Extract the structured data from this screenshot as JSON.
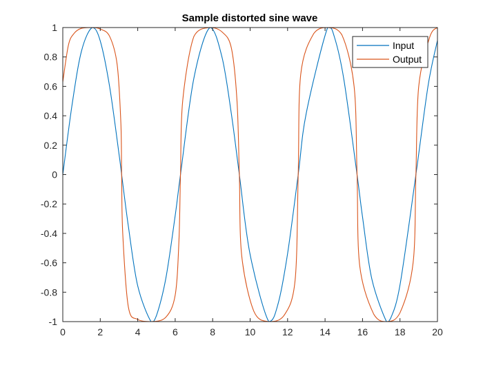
{
  "chart_data": {
    "type": "line",
    "title": "Sample distorted sine wave",
    "xlabel": "",
    "ylabel": "",
    "xlim": [
      0,
      20
    ],
    "ylim": [
      -1,
      1
    ],
    "x_ticks": [
      0,
      2,
      4,
      6,
      8,
      10,
      12,
      14,
      16,
      18,
      20
    ],
    "y_ticks": [
      -1,
      -0.8,
      -0.6,
      -0.4,
      -0.2,
      0,
      0.2,
      0.4,
      0.6,
      0.8,
      1
    ],
    "x_tick_labels": [
      "0",
      "2",
      "4",
      "6",
      "8",
      "10",
      "12",
      "14",
      "16",
      "18",
      "20"
    ],
    "y_tick_labels": [
      "-1",
      "-0.8",
      "-0.6",
      "-0.4",
      "-0.2",
      "0",
      "0.2",
      "0.4",
      "0.6",
      "0.8",
      "1"
    ],
    "grid": false,
    "legend_position": "top-right",
    "series": [
      {
        "name": "Input",
        "color": "#0072BD",
        "x": [
          0,
          0.5,
          1,
          1.5708,
          2,
          2.5,
          3,
          3.1416,
          3.5,
          4,
          4.7124,
          5,
          5.5,
          6,
          6.2832,
          7,
          7.854,
          8.5,
          9,
          9.4248,
          10,
          10.9956,
          11.5,
          12,
          12.5664,
          13,
          14.1372,
          14.5,
          15,
          15.708,
          16,
          16.5,
          17.2788,
          17.5,
          18,
          18.8496,
          19.5,
          20
        ],
        "y": [
          0,
          0.479,
          0.841,
          1,
          0.909,
          0.598,
          0.141,
          0,
          -0.351,
          -0.757,
          -1,
          -0.959,
          -0.706,
          -0.279,
          0,
          0.657,
          1,
          0.798,
          0.412,
          0,
          -0.544,
          -1,
          -0.875,
          -0.537,
          0,
          0.42,
          1,
          0.935,
          0.65,
          0,
          -0.288,
          -0.712,
          -1,
          -0.978,
          -0.751,
          0,
          0.605,
          0.913
        ]
      },
      {
        "name": "Output",
        "color": "#D95319",
        "x": [
          0,
          0.3,
          0.6,
          1,
          1.5708,
          2,
          2.5,
          2.9,
          3.1,
          3.1416,
          3.2,
          3.5,
          4,
          4.7124,
          5.5,
          6,
          6.2,
          6.2832,
          6.4,
          7,
          7.854,
          8.5,
          9,
          9.3,
          9.4248,
          9.55,
          10.2,
          10.9956,
          11.8,
          12.4,
          12.5664,
          12.7,
          13.4,
          14.1372,
          14.9,
          15.55,
          15.708,
          15.85,
          16.6,
          17.2788,
          18,
          18.7,
          18.8496,
          19,
          19.6,
          20
        ],
        "y": [
          0.63,
          0.88,
          0.96,
          0.995,
          1,
          0.99,
          0.94,
          0.75,
          0.35,
          0,
          -0.4,
          -0.9,
          -0.985,
          -1,
          -0.97,
          -0.82,
          -0.45,
          0,
          0.5,
          0.94,
          1,
          0.97,
          0.86,
          0.5,
          0,
          -0.55,
          -0.93,
          -1,
          -0.96,
          -0.72,
          0,
          0.68,
          0.96,
          1,
          0.95,
          0.6,
          0,
          -0.62,
          -0.95,
          -1,
          -0.94,
          -0.6,
          0,
          0.6,
          0.94,
          1
        ]
      }
    ]
  }
}
